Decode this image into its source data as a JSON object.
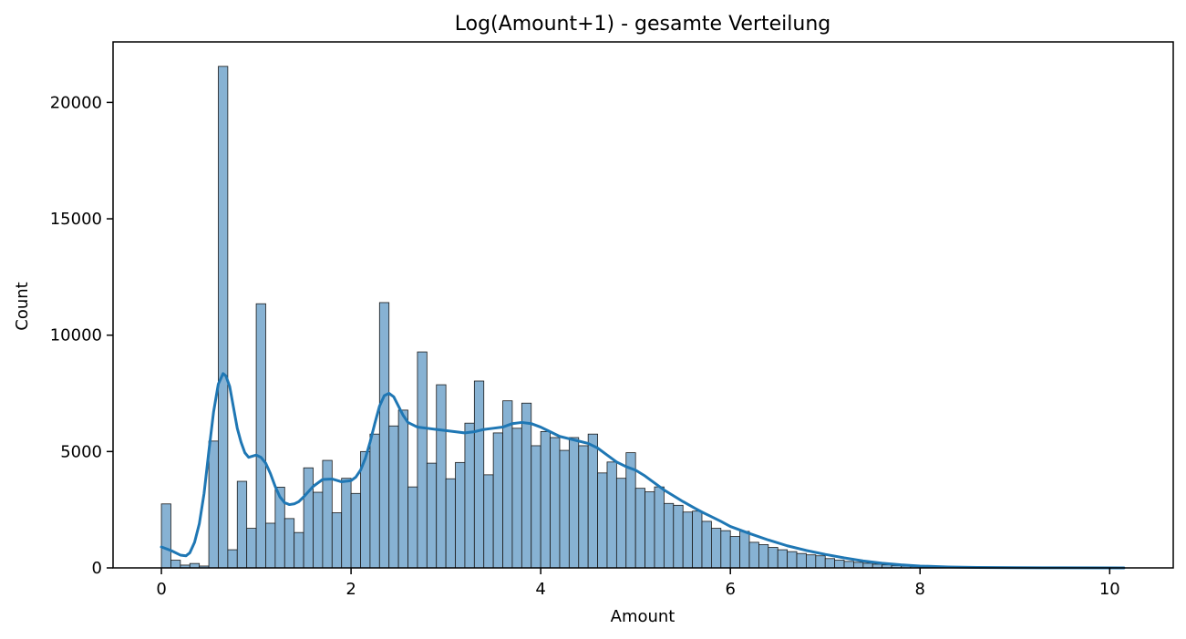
{
  "chart_data": {
    "type": "histogram",
    "title": "Log(Amount+1) - gesamte Verteilung",
    "xlabel": "Amount",
    "ylabel": "Count",
    "xlim": [
      -0.51,
      10.67
    ],
    "ylim": [
      0,
      22600
    ],
    "xticks": [
      {
        "value": 0,
        "label": "0"
      },
      {
        "value": 2,
        "label": "2"
      },
      {
        "value": 4,
        "label": "4"
      },
      {
        "value": 6,
        "label": "6"
      },
      {
        "value": 8,
        "label": "8"
      },
      {
        "value": 10,
        "label": "10"
      }
    ],
    "yticks": [
      {
        "value": 0,
        "label": "0"
      },
      {
        "value": 5000,
        "label": "5000"
      },
      {
        "value": 10000,
        "label": "10000"
      },
      {
        "value": 15000,
        "label": "15000"
      },
      {
        "value": 20000,
        "label": "20000"
      }
    ],
    "bin_start": 0,
    "bin_width": 0.1,
    "counts": [
      2750,
      330,
      120,
      190,
      80,
      5450,
      21550,
      780,
      3720,
      1700,
      11350,
      1920,
      3470,
      2120,
      1520,
      4300,
      3250,
      4620,
      2370,
      3850,
      3200,
      5000,
      5750,
      11400,
      6100,
      6780,
      3480,
      9280,
      4500,
      7870,
      3830,
      4530,
      6220,
      8030,
      4000,
      5800,
      7180,
      6000,
      7080,
      5250,
      5860,
      5600,
      5050,
      5600,
      5250,
      5750,
      4080,
      4550,
      3850,
      4950,
      3420,
      3270,
      3480,
      2770,
      2690,
      2400,
      2440,
      2000,
      1700,
      1600,
      1350,
      1570,
      1100,
      1000,
      880,
      780,
      700,
      620,
      560,
      520,
      400,
      330,
      280,
      240,
      200,
      160,
      130,
      100,
      80,
      60,
      40,
      30,
      25,
      20,
      15,
      12,
      10,
      8,
      6,
      5,
      4,
      3,
      2,
      2,
      2,
      1,
      1,
      1,
      1,
      1,
      1
    ],
    "kde": {
      "x": [
        0,
        0.1,
        0.2,
        0.26,
        0.3,
        0.35,
        0.4,
        0.45,
        0.5,
        0.55,
        0.6,
        0.65,
        0.68,
        0.72,
        0.76,
        0.8,
        0.84,
        0.88,
        0.92,
        0.96,
        1.0,
        1.05,
        1.1,
        1.15,
        1.2,
        1.25,
        1.3,
        1.35,
        1.4,
        1.45,
        1.5,
        1.6,
        1.7,
        1.8,
        1.9,
        2.0,
        2.05,
        2.1,
        2.15,
        2.2,
        2.25,
        2.3,
        2.35,
        2.4,
        2.45,
        2.5,
        2.55,
        2.6,
        2.7,
        2.8,
        2.9,
        3.0,
        3.1,
        3.2,
        3.3,
        3.4,
        3.5,
        3.6,
        3.7,
        3.8,
        3.9,
        4.0,
        4.1,
        4.2,
        4.3,
        4.4,
        4.5,
        4.6,
        4.7,
        4.8,
        4.9,
        5.0,
        5.1,
        5.2,
        5.3,
        5.4,
        5.5,
        5.6,
        5.7,
        5.8,
        5.9,
        6.0,
        6.2,
        6.4,
        6.6,
        6.8,
        7.0,
        7.2,
        7.4,
        7.6,
        7.8,
        8.0,
        8.3,
        8.6,
        9.0,
        9.5,
        10.15
      ],
      "y": [
        900,
        750,
        550,
        520,
        650,
        1100,
        1900,
        3200,
        5000,
        6700,
        7900,
        8350,
        8250,
        7800,
        6900,
        6000,
        5400,
        4950,
        4750,
        4800,
        4850,
        4750,
        4500,
        4050,
        3500,
        3050,
        2800,
        2720,
        2750,
        2850,
        3050,
        3500,
        3800,
        3820,
        3700,
        3750,
        3900,
        4200,
        4700,
        5400,
        6200,
        6950,
        7400,
        7500,
        7350,
        6950,
        6550,
        6250,
        6050,
        6000,
        5950,
        5900,
        5850,
        5800,
        5850,
        5950,
        6000,
        6050,
        6200,
        6250,
        6200,
        6050,
        5850,
        5650,
        5550,
        5450,
        5350,
        5150,
        4850,
        4550,
        4350,
        4200,
        3950,
        3650,
        3350,
        3100,
        2850,
        2620,
        2400,
        2200,
        2000,
        1780,
        1480,
        1200,
        950,
        750,
        580,
        430,
        300,
        200,
        130,
        80,
        40,
        20,
        8,
        3,
        0
      ]
    },
    "colors": {
      "bar_fill": "#87b2d3",
      "bar_edge": "#1a1a1a",
      "kde_line": "#1f77b4",
      "axes": "#000000"
    },
    "grid": false,
    "legend": "none"
  }
}
